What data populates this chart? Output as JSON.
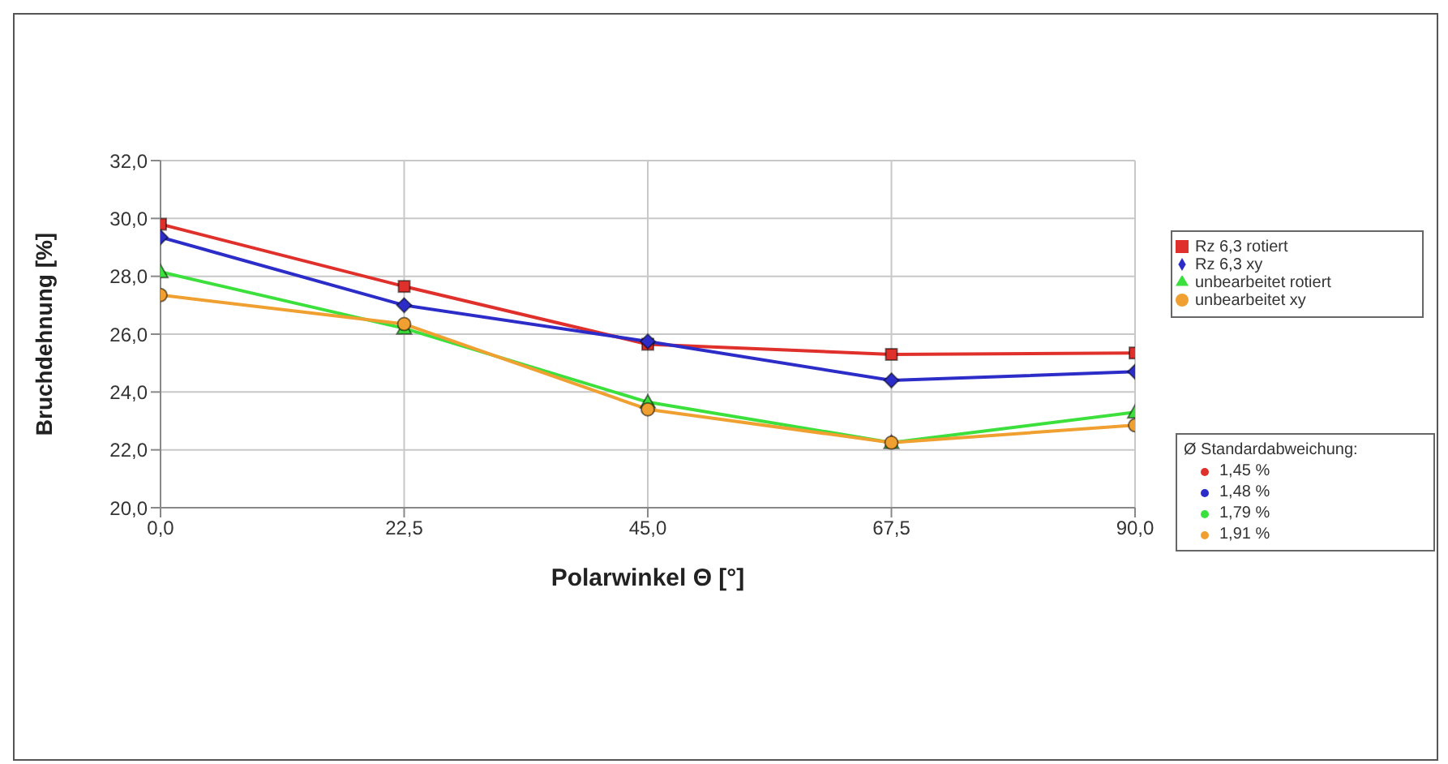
{
  "chart_data": {
    "type": "line",
    "xlabel": "Polarwinkel  Θ [°]",
    "ylabel": "Bruchdehnung [%]",
    "x": [
      0,
      22.5,
      45,
      67.5,
      90
    ],
    "series": [
      {
        "name": "Rz 6,3 rotiert",
        "color": "#e0302c",
        "marker": "square",
        "values": [
          29.8,
          27.65,
          25.65,
          25.3,
          25.35
        ]
      },
      {
        "name": "Rz 6,3 xy",
        "color": "#2c2cc8",
        "marker": "diamond",
        "values": [
          29.35,
          27.0,
          25.75,
          24.4,
          24.7
        ]
      },
      {
        "name": "unbearbeitet rotiert",
        "color": "#3ce03c",
        "marker": "triangle",
        "values": [
          28.15,
          26.2,
          23.65,
          22.25,
          23.3
        ]
      },
      {
        "name": "unbearbeitet xy",
        "color": "#f0a030",
        "marker": "circle",
        "values": [
          27.35,
          26.35,
          23.4,
          22.25,
          22.85
        ]
      }
    ],
    "xlim": [
      0,
      90
    ],
    "xticks": [
      {
        "value": 0,
        "label": "0,0"
      },
      {
        "value": 22.5,
        "label": "22,5"
      },
      {
        "value": 45,
        "label": "45,0"
      },
      {
        "value": 67.5,
        "label": "67,5"
      },
      {
        "value": 90,
        "label": "90,0"
      }
    ],
    "ylim": [
      20,
      32
    ],
    "yticks": [
      {
        "value": 20,
        "label": "20,0"
      },
      {
        "value": 22,
        "label": "22,0"
      },
      {
        "value": 24,
        "label": "24,0"
      },
      {
        "value": 26,
        "label": "26,0"
      },
      {
        "value": 28,
        "label": "28,0"
      },
      {
        "value": 30,
        "label": "30,0"
      },
      {
        "value": 32,
        "label": "32,0"
      }
    ],
    "grid": true,
    "legend": "right",
    "annotations": [
      "Ø Standardabweichung:",
      "1,45 %",
      "1,48 %",
      "1,79 %",
      "1,91 %"
    ]
  }
}
